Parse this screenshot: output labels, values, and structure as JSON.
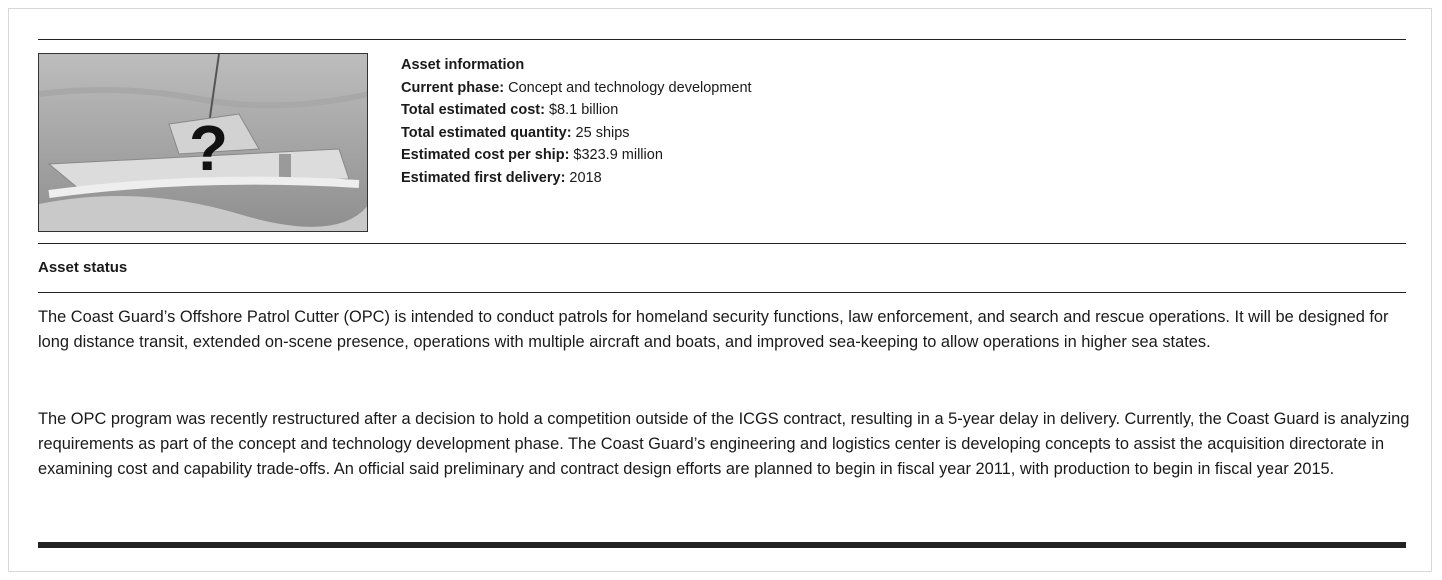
{
  "image": {
    "overlay": "?"
  },
  "asset_information": {
    "title": "Asset information",
    "fields": [
      {
        "label": "Current phase:",
        "value": "Concept and technology development"
      },
      {
        "label": "Total estimated cost:",
        "value": "$8.1 billion"
      },
      {
        "label": "Total estimated quantity:",
        "value": "25 ships"
      },
      {
        "label": "Estimated cost per ship:",
        "value": "$323.9 million"
      },
      {
        "label": "Estimated first delivery:",
        "value": "2018"
      }
    ]
  },
  "asset_status": {
    "title": "Asset status",
    "paragraphs": [
      "The Coast Guard’s Offshore Patrol Cutter (OPC) is intended to conduct patrols for homeland security functions, law enforcement, and search and rescue operations. It will be designed for long distance transit, extended on-scene presence, operations with multiple aircraft and boats, and improved sea-keeping to allow operations in higher sea states.",
      "The OPC program was recently restructured after a decision to hold a competition outside of the ICGS contract, resulting in a 5-year delay in delivery. Currently, the Coast Guard is analyzing requirements as part of the concept and technology development phase. The Coast Guard’s engineering and logistics center is developing concepts to assist the acquisition directorate in examining cost and capability trade-offs. An official said preliminary and contract design efforts are planned to begin in fiscal year 2011, with production to begin in fiscal year 2015."
    ]
  }
}
